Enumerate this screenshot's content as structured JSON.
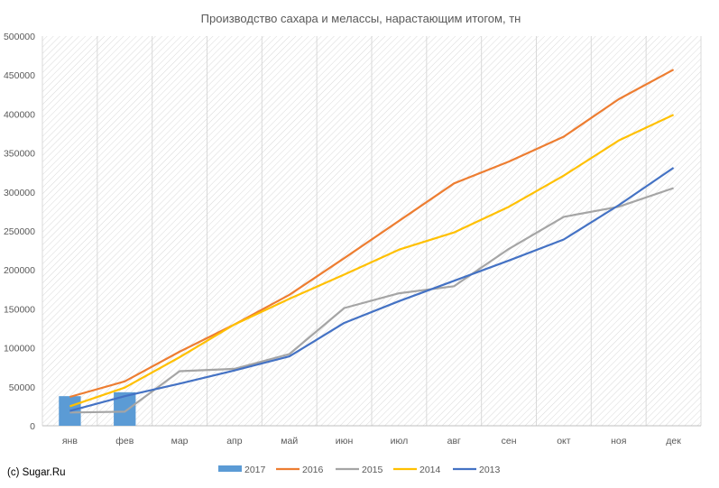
{
  "chart_data": {
    "type": "bar+line",
    "title": "Производство сахара и мелассы, нарастающим итогом, тн",
    "categories": [
      "янв",
      "фев",
      "мар",
      "апр",
      "май",
      "июн",
      "июл",
      "авг",
      "сен",
      "окт",
      "ноя",
      "дек"
    ],
    "ylim": [
      0,
      500000
    ],
    "yticks": [
      0,
      50000,
      100000,
      150000,
      200000,
      250000,
      300000,
      350000,
      400000,
      450000,
      500000
    ],
    "grid": "hatched",
    "legend_position": "bottom",
    "bar_series": [
      {
        "name": "2017",
        "color": "#5b9bd5",
        "values": [
          38000,
          43000,
          null,
          null,
          null,
          null,
          null,
          null,
          null,
          null,
          null,
          null
        ]
      }
    ],
    "line_series": [
      {
        "name": "2016",
        "color": "#ed7d31",
        "values": [
          37000,
          57000,
          95000,
          130000,
          168000,
          215000,
          263000,
          311000,
          339000,
          371000,
          419000,
          457000
        ]
      },
      {
        "name": "2015",
        "color": "#a5a5a5",
        "values": [
          17000,
          18000,
          70000,
          73000,
          92000,
          151000,
          170000,
          179000,
          227000,
          268000,
          281000,
          305000
        ]
      },
      {
        "name": "2014",
        "color": "#ffc000",
        "values": [
          25000,
          49000,
          88000,
          130000,
          163000,
          194000,
          226000,
          248000,
          281000,
          321000,
          366000,
          399000
        ]
      },
      {
        "name": "2013",
        "color": "#4472c4",
        "values": [
          19000,
          38000,
          54000,
          71000,
          89000,
          132000,
          160000,
          186000,
          212000,
          239000,
          283000,
          331000
        ]
      }
    ]
  },
  "credit": "(c) Sugar.Ru"
}
